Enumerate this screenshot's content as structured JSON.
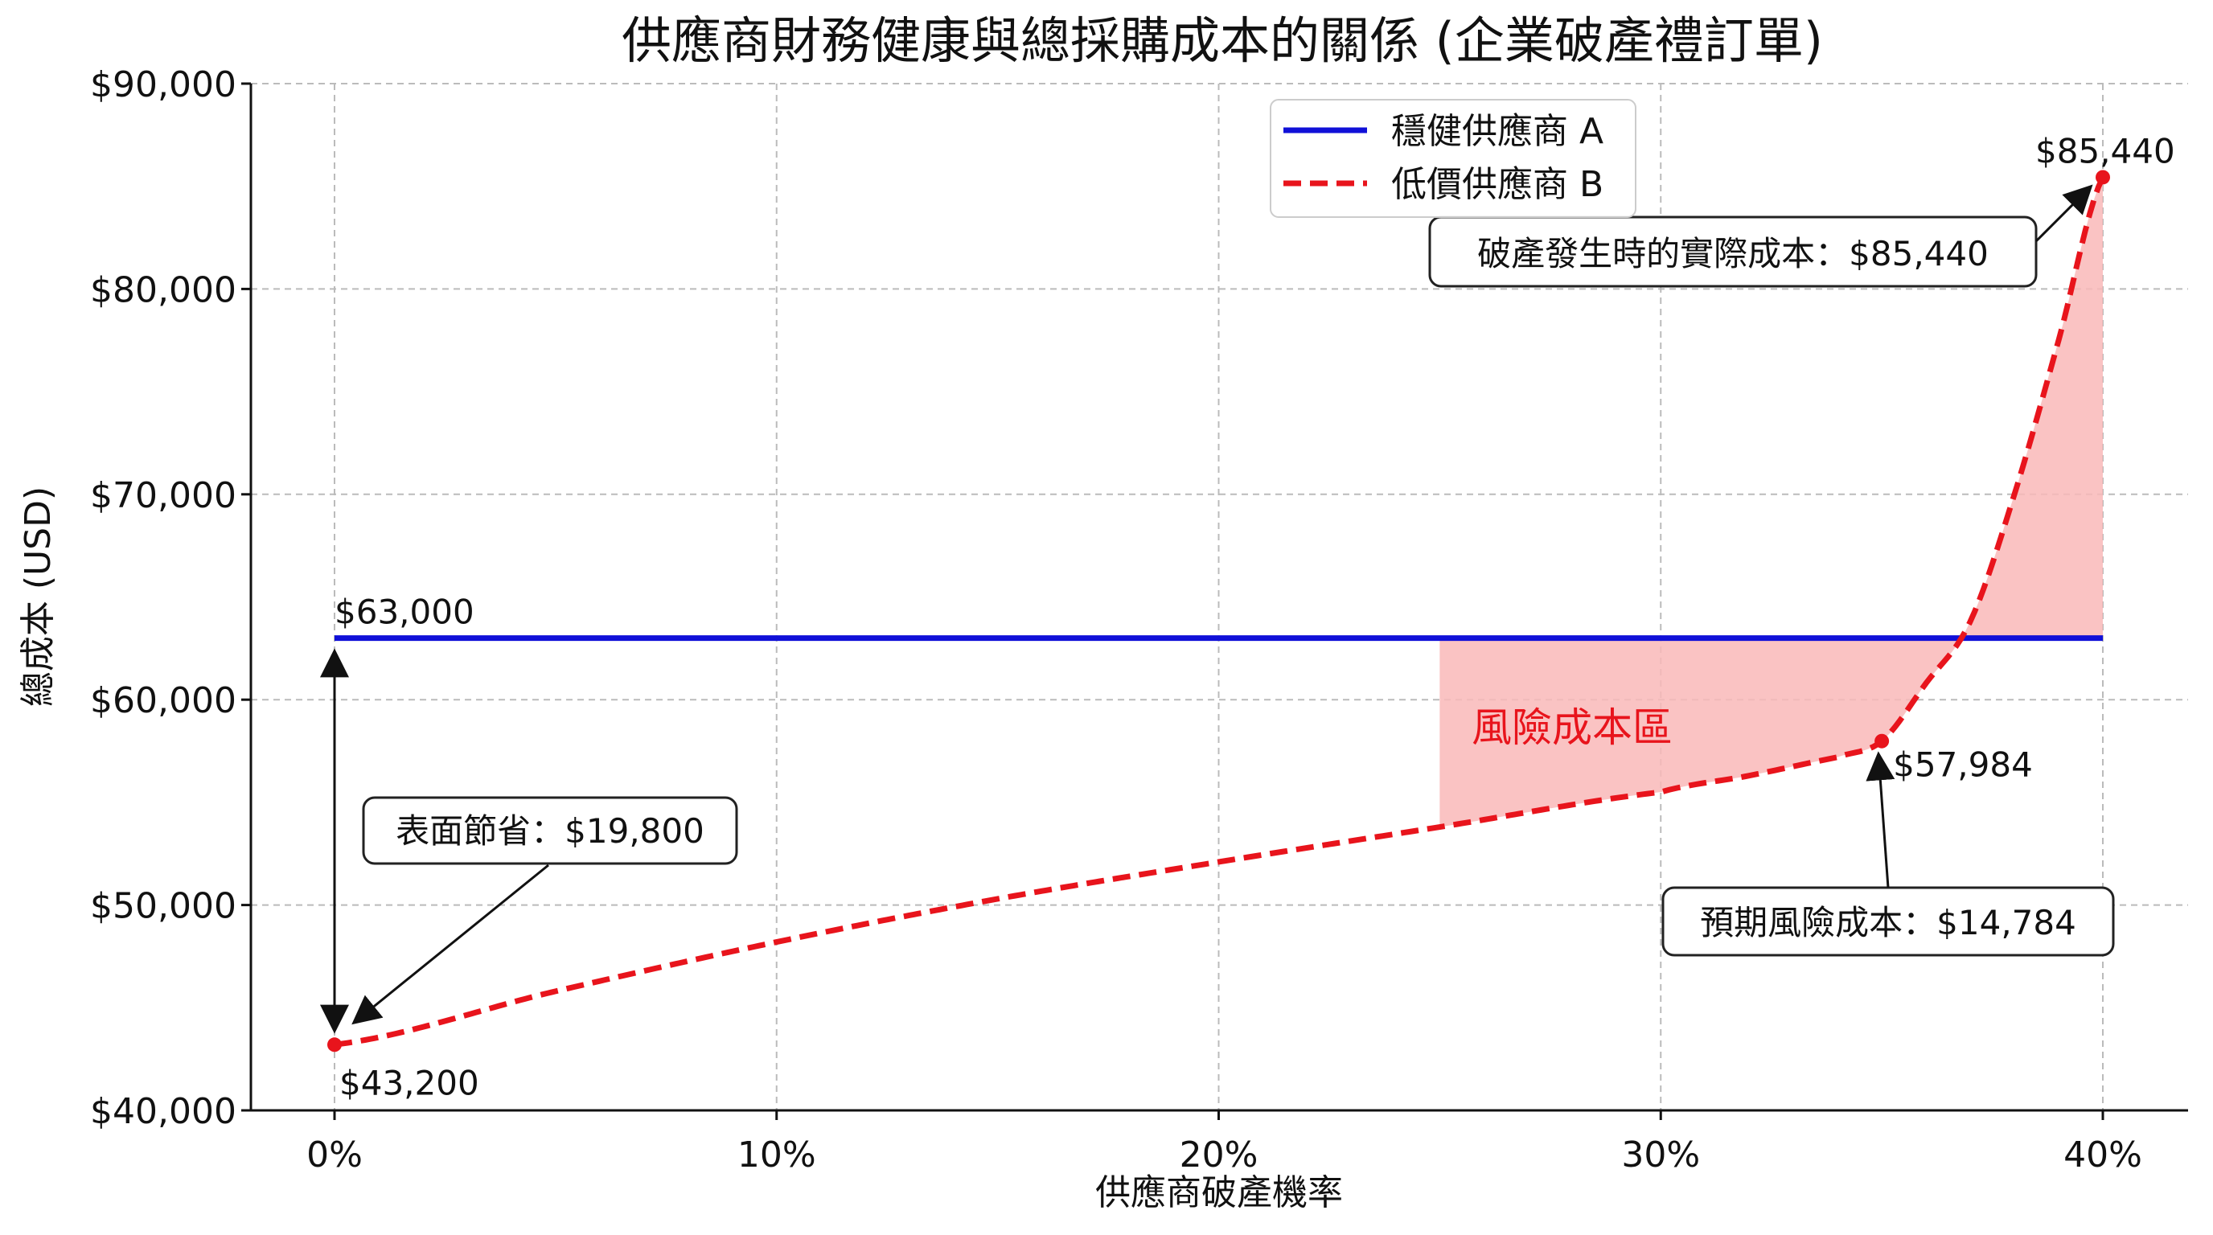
{
  "chart_data": {
    "type": "line",
    "title": "供應商財務健康與總採購成本的關係 (企業破產禮訂單)",
    "xlabel": "供應商破產機率",
    "ylabel": "總成本 (USD)",
    "xlim": [
      0,
      40
    ],
    "ylim": [
      40000,
      90000
    ],
    "x_ticks": [
      0,
      10,
      20,
      30,
      40
    ],
    "x_tick_labels": [
      "0%",
      "10%",
      "20%",
      "30%",
      "40%"
    ],
    "y_ticks": [
      40000,
      50000,
      60000,
      70000,
      80000,
      90000
    ],
    "y_tick_labels": [
      "$40,000",
      "$50,000",
      "$60,000",
      "$70,000",
      "$80,000",
      "$90,000"
    ],
    "grid": true,
    "legend_placement": "top-center",
    "series": [
      {
        "name": "穩健供應商 A",
        "color": "#1010d8",
        "style": "solid",
        "x": [
          0,
          40
        ],
        "y": [
          63000,
          63000
        ]
      },
      {
        "name": "低價供應商 B",
        "color": "#e8141c",
        "style": "dashed",
        "x": [
          0,
          5,
          10,
          15,
          20,
          25,
          30,
          32,
          34,
          35,
          36,
          37,
          38,
          39,
          40
        ],
        "y": [
          43200,
          45800,
          48200,
          50300,
          52100,
          53800,
          55500,
          56300,
          57200,
          57984,
          60800,
          63800,
          70000,
          77500,
          85440
        ]
      }
    ],
    "shaded_region": {
      "label": "風險成本區",
      "x_range": [
        25,
        40
      ],
      "color": "#f9b8b8",
      "label_color": "#e8141c"
    },
    "point_labels": [
      {
        "x": 0,
        "y": 63000,
        "text": "$63,000"
      },
      {
        "x": 0,
        "y": 43200,
        "text": "$43,200"
      },
      {
        "x": 35,
        "y": 57984,
        "text": "$57,984"
      },
      {
        "x": 40,
        "y": 85440,
        "text": "$85,440"
      }
    ],
    "annotations": [
      {
        "text": "表面節省：$19,800"
      },
      {
        "text": "預期風險成本：$14,784"
      },
      {
        "text": "破產發生時的實際成本：$85,440"
      }
    ]
  }
}
